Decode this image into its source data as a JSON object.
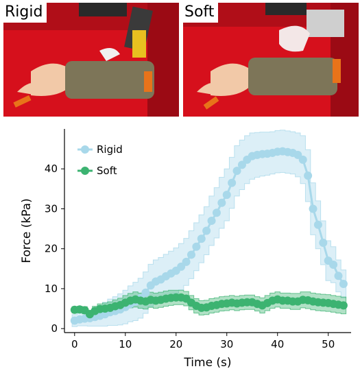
{
  "photos": {
    "left": {
      "label": "Rigid"
    },
    "right": {
      "label": "Soft"
    }
  },
  "colors": {
    "rigid": "#a8d8ea",
    "soft": "#3cb371",
    "cloth_red": "#d6101c",
    "sleeve": "#7d7558",
    "skin": "#f2c9a8",
    "strap": "#e8731a"
  },
  "chart_data": {
    "type": "line",
    "title": "",
    "xlabel": "Time (s)",
    "ylabel": "Force (kPa)",
    "xlim": [
      -2,
      54.5
    ],
    "ylim": [
      -1,
      50
    ],
    "xticks": [
      0,
      10,
      20,
      30,
      40,
      50
    ],
    "yticks": [
      0,
      10,
      20,
      30,
      40
    ],
    "grid": false,
    "legend_position": "top-left",
    "series": [
      {
        "name": "Rigid",
        "color": "#a8d8ea",
        "x": [
          0,
          1,
          2,
          3,
          4,
          5,
          6,
          7,
          8,
          9,
          10,
          11,
          12,
          13,
          14,
          15,
          16,
          17,
          18,
          19,
          20,
          21,
          22,
          23,
          24,
          25,
          26,
          27,
          28,
          29,
          30,
          31,
          32,
          33,
          34,
          35,
          36,
          37,
          38,
          39,
          40,
          41,
          42,
          43,
          44,
          45,
          46,
          47,
          48,
          49,
          50,
          51,
          52,
          53
        ],
        "y": [
          2,
          2.3,
          2.5,
          2.6,
          2.9,
          3.2,
          3.6,
          4.1,
          4.4,
          4.8,
          5.4,
          6.2,
          6.8,
          7.6,
          9,
          10.8,
          11.8,
          12.3,
          13.1,
          13.8,
          14.5,
          15.5,
          16.7,
          18.5,
          20.5,
          22.5,
          24.5,
          27,
          29,
          31.5,
          33.5,
          36.5,
          39.5,
          41,
          42.3,
          43.2,
          43.5,
          43.7,
          43.8,
          44,
          44.3,
          44.4,
          44.2,
          44,
          43.5,
          42.3,
          38.3,
          30,
          26,
          21.5,
          17,
          16,
          13.2,
          11.2
        ],
        "band": [
          1.5,
          1.6,
          1.8,
          2,
          2.3,
          2.6,
          3,
          3.3,
          3.6,
          3.9,
          4.2,
          4.5,
          4.8,
          5,
          5.2,
          5.3,
          5.4,
          5.5,
          5.5,
          5.6,
          5.7,
          5.8,
          5.9,
          6,
          6,
          6,
          6,
          6.2,
          6.3,
          6.4,
          6.5,
          6.4,
          6.3,
          6.2,
          6,
          5.8,
          5.6,
          5.5,
          5.4,
          5.3,
          5.3,
          5.3,
          5.3,
          5.3,
          5.5,
          6,
          6.5,
          6.5,
          6,
          5.5,
          5,
          4.5,
          4,
          3.5
        ]
      },
      {
        "name": "Soft",
        "color": "#3cb371",
        "x": [
          0,
          1,
          2,
          3,
          4,
          5,
          6,
          7,
          8,
          9,
          10,
          11,
          12,
          13,
          14,
          15,
          16,
          17,
          18,
          19,
          20,
          21,
          22,
          23,
          24,
          25,
          26,
          27,
          28,
          29,
          30,
          31,
          32,
          33,
          34,
          35,
          36,
          37,
          38,
          39,
          40,
          41,
          42,
          43,
          44,
          45,
          46,
          47,
          48,
          49,
          50,
          51,
          52,
          53
        ],
        "y": [
          4.7,
          4.8,
          4.6,
          3.6,
          4.4,
          4.9,
          5.0,
          5.2,
          5.6,
          5.9,
          6.5,
          7.0,
          7.3,
          7.0,
          6.8,
          7.2,
          7.0,
          7.2,
          7.5,
          7.7,
          7.8,
          7.8,
          7.5,
          6.5,
          5.7,
          5.2,
          5.3,
          5.7,
          5.9,
          6.2,
          6.3,
          6.5,
          6.3,
          6.5,
          6.6,
          6.6,
          6.2,
          5.8,
          6.4,
          7.0,
          7.3,
          7.0,
          7.0,
          6.8,
          6.8,
          7.2,
          7.1,
          6.8,
          6.6,
          6.5,
          6.4,
          6.2,
          6.0,
          5.8
        ],
        "band": [
          0.8,
          0.8,
          0.9,
          1.0,
          1.2,
          1.3,
          1.4,
          1.5,
          1.6,
          1.7,
          1.8,
          1.8,
          1.9,
          1.9,
          1.9,
          1.9,
          1.9,
          1.9,
          1.9,
          1.9,
          1.8,
          1.8,
          1.8,
          1.8,
          1.8,
          1.8,
          1.8,
          1.8,
          1.8,
          1.8,
          1.8,
          1.8,
          1.8,
          1.8,
          1.8,
          1.8,
          1.8,
          1.9,
          1.9,
          1.9,
          1.9,
          1.9,
          1.9,
          2.0,
          2.0,
          2.0,
          2.1,
          2.1,
          2.1,
          2.1,
          2.1,
          2.1,
          2.1,
          2.1
        ]
      }
    ]
  }
}
